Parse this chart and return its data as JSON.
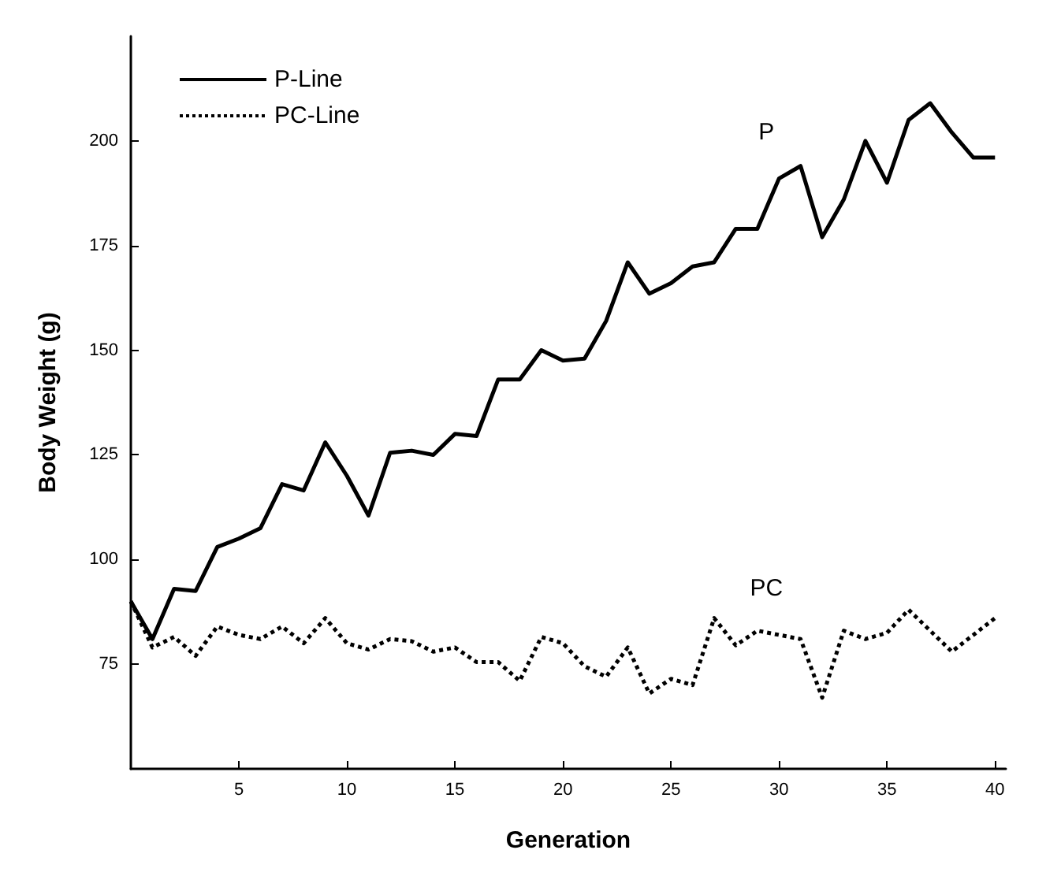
{
  "chart_data": {
    "type": "line",
    "xlabel": "Generation",
    "ylabel": "Body Weight (g)",
    "x": [
      0,
      1,
      2,
      3,
      4,
      5,
      6,
      7,
      8,
      9,
      10,
      11,
      12,
      13,
      14,
      15,
      16,
      17,
      18,
      19,
      20,
      21,
      22,
      23,
      24,
      25,
      26,
      27,
      28,
      29,
      30,
      31,
      32,
      33,
      34,
      35,
      36,
      37,
      38,
      39,
      40
    ],
    "series": [
      {
        "name": "P-Line",
        "color": "#000000",
        "line_style": "solid",
        "values": [
          90,
          81,
          93,
          92.5,
          103,
          105,
          107.5,
          118,
          116.5,
          128,
          120,
          110.5,
          125.5,
          126,
          125,
          130,
          129.5,
          143,
          143,
          150,
          147.5,
          148,
          157,
          171,
          163.5,
          166,
          170,
          171,
          179,
          179,
          191,
          194,
          177,
          186,
          200,
          190,
          205,
          209,
          202,
          196,
          196
        ]
      },
      {
        "name": "PC-Line",
        "color": "#000000",
        "line_style": "dotted",
        "values": [
          90,
          79,
          81.5,
          77,
          84,
          82,
          81,
          84,
          80,
          86,
          80,
          78.5,
          81,
          80.5,
          78,
          79,
          75.5,
          75.5,
          71,
          81.5,
          80,
          74.5,
          72,
          79,
          68,
          71.5,
          70,
          86,
          79.5,
          83,
          82,
          81,
          67,
          83,
          81,
          82.5,
          88,
          83,
          78,
          82,
          86
        ]
      }
    ],
    "annotations": [
      "P",
      "PC"
    ],
    "xlim": [
      0,
      40.5
    ],
    "xticks": [
      5,
      10,
      15,
      20,
      25,
      30,
      35,
      40
    ],
    "ylim": [
      50,
      225
    ],
    "yticks": [
      75,
      100,
      125,
      150,
      175,
      200
    ],
    "grid": false,
    "legend": "top left",
    "marker": "none"
  }
}
